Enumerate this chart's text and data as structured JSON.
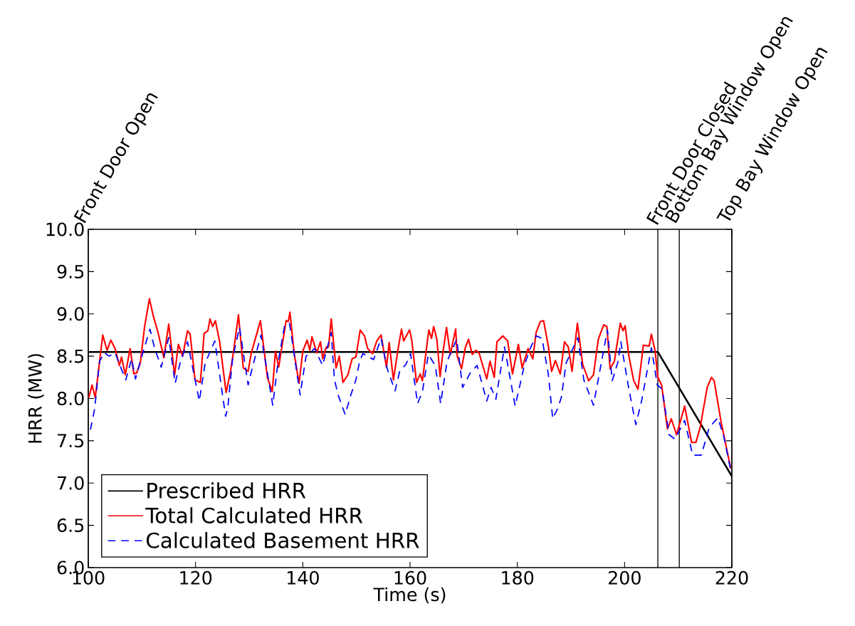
{
  "chart_data": {
    "type": "line",
    "xlabel": "Time (s)",
    "ylabel": "HRR (MW)",
    "xlim": [
      100,
      220
    ],
    "ylim": [
      6.0,
      10.0
    ],
    "xticks": [
      100,
      120,
      140,
      160,
      180,
      200,
      220
    ],
    "yticks": [
      {
        "value": 6.0,
        "label": "6.0"
      },
      {
        "value": 6.5,
        "label": "6.5"
      },
      {
        "value": 7.0,
        "label": "7.0"
      },
      {
        "value": 7.5,
        "label": "7.5"
      },
      {
        "value": 8.0,
        "label": "8.0"
      },
      {
        "value": 8.5,
        "label": "8.5"
      },
      {
        "value": 9.0,
        "label": "9.0"
      },
      {
        "value": 9.5,
        "label": "9.5"
      },
      {
        "value": 10.0,
        "label": "10.0"
      }
    ],
    "legend": "bottom left",
    "ref_lines": [
      {
        "axis": "x",
        "value": 100,
        "label": "Front Door Open",
        "color": "#000000"
      },
      {
        "axis": "x",
        "value": 206.2,
        "label": "Front Door Closed",
        "color": "#000000"
      },
      {
        "axis": "x",
        "value": 210.2,
        "label": "Bottom Bay Window Open",
        "color": "#000000"
      },
      {
        "axis": "x",
        "value": 220,
        "label": "Top Bay Window Open",
        "color": "#000000"
      }
    ],
    "series": [
      {
        "name": "Prescribed HRR",
        "color": "#000000",
        "line_style": "solid",
        "x": [
          100,
          206.2,
          220
        ],
        "values": [
          8.55,
          8.55,
          7.08
        ]
      },
      {
        "name": "Total Calculated HRR",
        "color": "#ff0000",
        "line_style": "solid",
        "x": [
          100.1,
          100.7,
          101.3,
          102.7,
          103.5,
          104.2,
          105.0,
          105.8,
          106.2,
          106.9,
          107.8,
          108.5,
          109.0,
          109.7,
          110.5,
          111.4,
          112.1,
          113.0,
          114.1,
          115.0,
          116.1,
          116.8,
          117.6,
          118.5,
          119.0,
          119.9,
          120.9,
          121.6,
          122.3,
          122.7,
          123.2,
          123.7,
          124.5,
          125.7,
          126.5,
          127.1,
          128.0,
          128.9,
          129.8,
          130.4,
          131.3,
          132.1,
          133.4,
          134.3,
          134.9,
          135.5,
          136.4,
          136.9,
          137.3,
          137.6,
          138.4,
          139.3,
          140.0,
          140.8,
          141.3,
          141.7,
          142.6,
          143.3,
          143.7,
          144.4,
          144.8,
          145.3,
          146.2,
          146.8,
          147.5,
          148.4,
          149.2,
          149.9,
          150.7,
          151.5,
          152.1,
          153.0,
          153.8,
          154.6,
          155.6,
          156.1,
          156.9,
          157.7,
          158.4,
          158.8,
          159.9,
          160.3,
          161.2,
          161.9,
          162.3,
          163.5,
          164.0,
          164.4,
          165.0,
          165.6,
          166.1,
          166.8,
          167.5,
          168.5,
          168.8,
          169.6,
          170.3,
          170.9,
          171.6,
          172.3,
          172.9,
          174.3,
          174.9,
          175.7,
          176.2,
          177.3,
          178.2,
          179.1,
          180.2,
          180.9,
          182.0,
          182.9,
          183.5,
          184.3,
          184.9,
          185.8,
          186.4,
          187.1,
          188.0,
          188.8,
          189.5,
          190.2,
          191.2,
          192.2,
          193.3,
          194.2,
          195.1,
          196.1,
          196.7,
          197.3,
          198.1,
          199.2,
          199.7,
          200.1,
          200.8,
          201.7,
          202.5,
          203.5,
          204.6,
          205.0,
          205.7,
          206.2,
          206.9,
          208.0,
          208.7,
          209.7,
          211.2,
          212.5,
          213.3,
          214.1,
          215.4,
          216.2,
          216.7,
          218.0,
          219.8
        ],
        "values": [
          8.01,
          8.16,
          8.01,
          8.75,
          8.57,
          8.69,
          8.59,
          8.39,
          8.49,
          8.28,
          8.59,
          8.29,
          8.3,
          8.42,
          8.85,
          9.18,
          8.98,
          8.78,
          8.48,
          8.88,
          8.28,
          8.64,
          8.5,
          8.8,
          8.76,
          8.22,
          8.19,
          8.77,
          8.8,
          8.94,
          8.85,
          8.92,
          8.67,
          8.07,
          8.31,
          8.56,
          8.99,
          8.36,
          8.32,
          8.54,
          8.74,
          8.92,
          8.25,
          8.08,
          8.56,
          8.37,
          8.73,
          8.92,
          8.91,
          9.02,
          8.53,
          8.18,
          8.56,
          8.69,
          8.57,
          8.73,
          8.54,
          8.67,
          8.47,
          8.61,
          8.61,
          8.94,
          8.36,
          8.5,
          8.19,
          8.28,
          8.47,
          8.49,
          8.81,
          8.74,
          8.59,
          8.53,
          8.68,
          8.75,
          8.37,
          8.66,
          8.22,
          8.56,
          8.82,
          8.68,
          8.81,
          8.7,
          8.19,
          8.29,
          8.21,
          8.81,
          8.71,
          8.85,
          8.7,
          8.26,
          8.53,
          8.84,
          8.52,
          8.82,
          8.5,
          8.35,
          8.6,
          8.7,
          8.52,
          8.57,
          8.53,
          8.23,
          8.44,
          8.25,
          8.67,
          8.74,
          8.68,
          8.29,
          8.64,
          8.36,
          8.59,
          8.47,
          8.78,
          8.91,
          8.92,
          8.61,
          8.32,
          8.45,
          8.29,
          8.67,
          8.61,
          8.32,
          8.89,
          8.4,
          8.21,
          8.28,
          8.7,
          8.87,
          8.85,
          8.35,
          8.44,
          8.89,
          8.8,
          8.86,
          8.5,
          8.21,
          8.11,
          8.63,
          8.62,
          8.76,
          8.56,
          8.25,
          8.16,
          7.64,
          7.76,
          7.57,
          7.91,
          7.48,
          7.48,
          7.66,
          8.13,
          8.25,
          8.21,
          7.72,
          7.17
        ]
      },
      {
        "name": "Calculated Basement HRR",
        "color": "#0000ff",
        "line_style": "dashed",
        "x": [
          100.4,
          101.2,
          102.1,
          103.0,
          103.9,
          105.0,
          105.9,
          107.0,
          108.1,
          108.8,
          109.7,
          111.5,
          112.3,
          113.6,
          115.0,
          116.2,
          117.2,
          118.5,
          120.7,
          121.8,
          123.6,
          125.6,
          126.0,
          126.9,
          128.2,
          129.8,
          130.7,
          132.2,
          134.4,
          135.3,
          136.6,
          137.5,
          138.4,
          139.5,
          140.6,
          142.2,
          143.7,
          145.3,
          145.9,
          146.6,
          147.9,
          149.0,
          149.9,
          150.6,
          151.2,
          153.2,
          154.6,
          155.7,
          157.2,
          158.1,
          159.2,
          160.1,
          161.4,
          162.3,
          163.4,
          164.7,
          165.7,
          166.9,
          168.7,
          169.8,
          171.2,
          172.5,
          174.3,
          175.1,
          176.0,
          177.6,
          179.6,
          181.3,
          182.4,
          183.5,
          184.6,
          185.8,
          186.6,
          187.5,
          188.2,
          189.1,
          191.3,
          192.4,
          194.2,
          195.1,
          196.8,
          197.7,
          198.8,
          199.3,
          200.8,
          202.1,
          203.2,
          205.0,
          206.1,
          207.0,
          208.3,
          209.4,
          211.2,
          212.7,
          214.3,
          215.8,
          217.4,
          218.5,
          219.7
        ],
        "values": [
          7.63,
          7.88,
          8.44,
          8.54,
          8.5,
          8.54,
          8.39,
          8.22,
          8.47,
          8.23,
          8.44,
          8.82,
          8.61,
          8.37,
          8.72,
          8.18,
          8.44,
          8.67,
          7.97,
          8.42,
          8.68,
          7.79,
          7.88,
          8.47,
          8.84,
          8.16,
          8.39,
          8.75,
          7.92,
          8.39,
          8.86,
          8.89,
          8.52,
          8.04,
          8.5,
          8.59,
          8.39,
          8.78,
          8.22,
          8.04,
          7.81,
          8.05,
          8.22,
          8.44,
          8.53,
          8.46,
          8.71,
          8.36,
          8.09,
          8.33,
          8.4,
          8.53,
          7.94,
          8.08,
          8.52,
          8.39,
          7.94,
          8.44,
          8.7,
          8.13,
          8.3,
          8.39,
          7.97,
          8.13,
          7.99,
          8.61,
          7.91,
          8.39,
          8.59,
          8.74,
          8.71,
          8.28,
          7.76,
          7.88,
          8.01,
          8.42,
          8.72,
          8.22,
          7.92,
          8.23,
          8.81,
          8.21,
          8.44,
          8.67,
          8.11,
          7.69,
          7.98,
          8.6,
          8.16,
          8.11,
          7.57,
          7.52,
          7.74,
          7.33,
          7.33,
          7.66,
          7.77,
          7.55,
          7.18
        ]
      }
    ]
  }
}
